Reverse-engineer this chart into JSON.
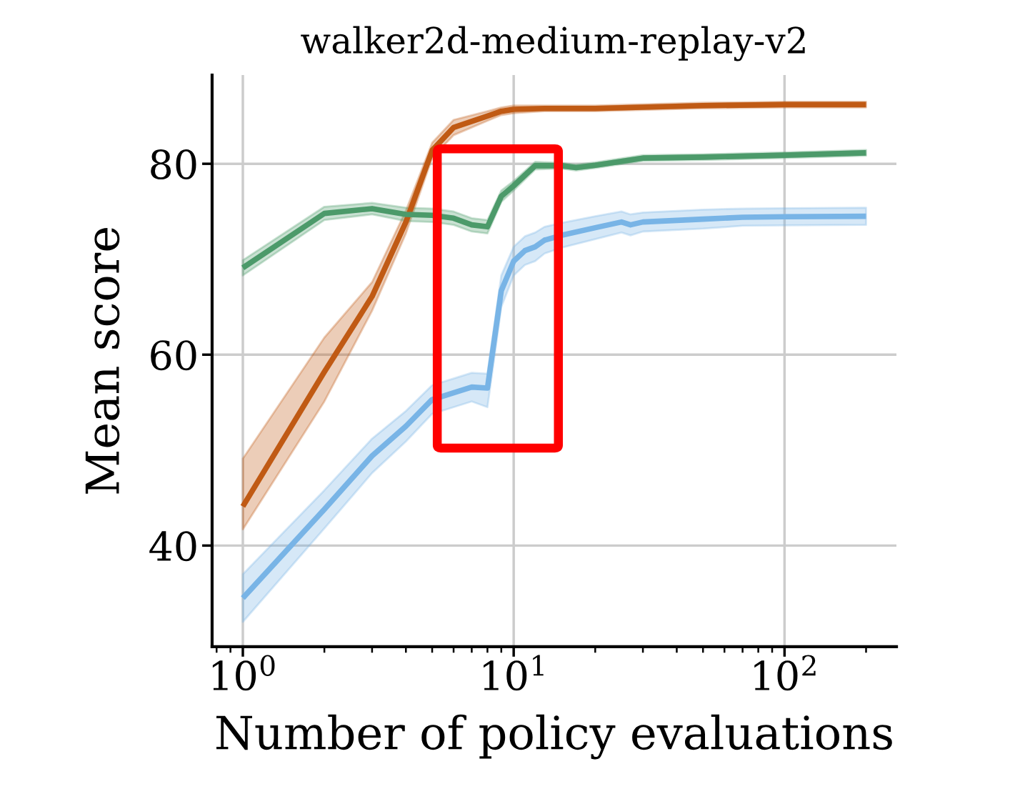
{
  "chart_data": {
    "type": "line",
    "title": "walker2d-medium-replay-v2",
    "xlabel": "Number of policy evaluations",
    "ylabel": "Mean score",
    "log": "x",
    "grid": true,
    "legend": false,
    "line_style": "solid",
    "marker": "none",
    "xlim": [
      0.77,
      259
    ],
    "xticks": [
      {
        "value": 1,
        "label": "10$^{0}$"
      },
      {
        "value": 10,
        "label": "10$^{1}$"
      },
      {
        "value": 100,
        "label": "10$^{2}$"
      }
    ],
    "ylim": [
      29.4,
      89.3
    ],
    "yticks": [
      40,
      60,
      80
    ],
    "series": [
      {
        "color": "#c05a14",
        "x": [
          1,
          2,
          3,
          4,
          5,
          6,
          8,
          9,
          10,
          13,
          20,
          50,
          100,
          200
        ],
        "values": [
          44.1,
          58.2,
          66.1,
          73.9,
          81.4,
          83.8,
          85.0,
          85.5,
          85.7,
          85.8,
          85.8,
          86.1,
          86.2,
          86.2
        ],
        "lower": [
          41.7,
          55.1,
          64.6,
          72.7,
          80.6,
          83.0,
          84.5,
          85.1,
          85.3,
          85.5,
          85.5,
          85.8,
          85.9,
          85.9
        ],
        "upper": [
          49.1,
          61.8,
          67.6,
          75.1,
          82.2,
          84.6,
          85.5,
          85.9,
          86.1,
          86.1,
          86.1,
          86.4,
          86.5,
          86.5
        ]
      },
      {
        "color": "#4c9a6a",
        "x": [
          1,
          2,
          3,
          4,
          5,
          6,
          7,
          8,
          9,
          10,
          12,
          15,
          17,
          20,
          30,
          50,
          100,
          200
        ],
        "values": [
          69.1,
          74.8,
          75.3,
          74.7,
          74.6,
          74.3,
          73.6,
          73.4,
          76.6,
          77.7,
          79.8,
          79.8,
          79.6,
          79.85,
          80.6,
          80.7,
          80.9,
          81.15
        ],
        "lower": [
          68.3,
          74.1,
          74.7,
          74.0,
          73.9,
          73.6,
          72.9,
          72.7,
          76.0,
          77.2,
          79.4,
          79.5,
          79.3,
          79.55,
          80.3,
          80.4,
          80.6,
          80.85
        ],
        "upper": [
          69.9,
          75.5,
          75.9,
          75.4,
          75.3,
          75.0,
          74.3,
          74.1,
          77.2,
          78.2,
          80.2,
          80.1,
          79.9,
          80.15,
          80.9,
          81.0,
          81.2,
          81.45
        ]
      },
      {
        "color": "#78b4e6",
        "x": [
          1,
          2,
          3,
          4,
          5,
          6,
          7,
          8,
          9,
          10,
          11,
          12,
          13,
          15,
          20,
          25,
          27,
          30,
          50,
          70,
          100,
          200
        ],
        "values": [
          34.5,
          43.8,
          49.4,
          52.5,
          55.3,
          56.0,
          56.6,
          56.5,
          66.7,
          69.8,
          70.9,
          71.3,
          72.0,
          72.5,
          73.3,
          73.9,
          73.6,
          73.9,
          74.2,
          74.4,
          74.45,
          74.5
        ],
        "lower": [
          32.0,
          41.8,
          47.6,
          50.9,
          53.8,
          54.5,
          55.1,
          54.5,
          65.0,
          68.3,
          69.4,
          69.8,
          70.6,
          71.2,
          72.1,
          72.8,
          72.5,
          72.9,
          73.2,
          73.5,
          73.55,
          73.6
        ],
        "upper": [
          37.0,
          45.8,
          51.2,
          54.1,
          56.8,
          57.5,
          58.1,
          58.0,
          68.3,
          71.3,
          72.4,
          72.8,
          73.4,
          73.8,
          74.5,
          75.0,
          74.7,
          74.9,
          75.2,
          75.3,
          75.35,
          75.4
        ]
      }
    ]
  }
}
